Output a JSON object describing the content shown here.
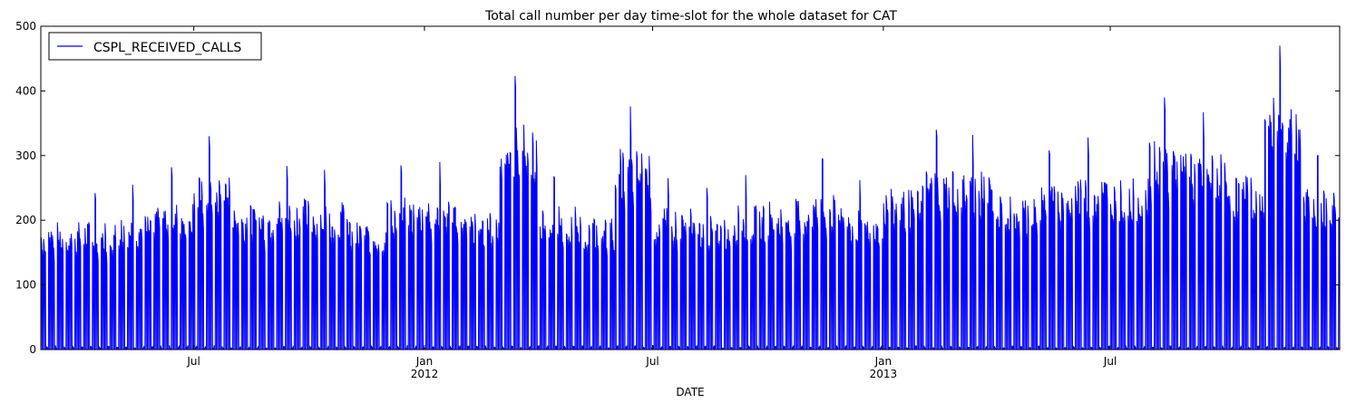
{
  "chart_data": {
    "type": "line",
    "title": "Total call number per day time-slot for the whole dataset for CAT",
    "xlabel": "DATE",
    "ylabel": "",
    "ylim": [
      0,
      500
    ],
    "xlim": [
      "2011-03-01",
      "2013-12-31"
    ],
    "grid": false,
    "legend_position": "top-left",
    "series_color": "#0000ff",
    "y_ticks": [
      "0",
      "100",
      "200",
      "300",
      "400",
      "500"
    ],
    "x_ticks": [
      {
        "date": "2011-07-01",
        "label": "Jul",
        "sublabel": ""
      },
      {
        "date": "2012-01-01",
        "label": "Jan",
        "sublabel": "2012"
      },
      {
        "date": "2012-07-01",
        "label": "Jul",
        "sublabel": ""
      },
      {
        "date": "2013-01-01",
        "label": "Jan",
        "sublabel": "2013"
      },
      {
        "date": "2013-07-01",
        "label": "Jul",
        "sublabel": ""
      }
    ],
    "series": [
      {
        "name": "CSPL_RECEIVED_CALLS",
        "color": "#0000ff",
        "period_peaks": [
          {
            "start": "2011-03-01",
            "end": "2011-03-31",
            "peak": 240
          },
          {
            "start": "2011-04-01",
            "end": "2011-04-30",
            "peak": 242
          },
          {
            "start": "2011-05-01",
            "end": "2011-05-31",
            "peak": 255
          },
          {
            "start": "2011-06-01",
            "end": "2011-06-30",
            "peak": 282
          },
          {
            "start": "2011-07-01",
            "end": "2011-07-31",
            "peak": 330
          },
          {
            "start": "2011-08-01",
            "end": "2011-08-31",
            "peak": 272
          },
          {
            "start": "2011-09-01",
            "end": "2011-09-30",
            "peak": 284
          },
          {
            "start": "2011-10-01",
            "end": "2011-10-31",
            "peak": 278
          },
          {
            "start": "2011-11-01",
            "end": "2011-11-30",
            "peak": 240
          },
          {
            "start": "2011-12-01",
            "end": "2011-12-31",
            "peak": 285
          },
          {
            "start": "2012-01-01",
            "end": "2012-01-31",
            "peak": 290
          },
          {
            "start": "2012-02-01",
            "end": "2012-02-29",
            "peak": 258
          },
          {
            "start": "2012-03-01",
            "end": "2012-03-31",
            "peak": 423
          },
          {
            "start": "2012-04-01",
            "end": "2012-04-30",
            "peak": 268
          },
          {
            "start": "2012-05-01",
            "end": "2012-05-31",
            "peak": 248
          },
          {
            "start": "2012-06-01",
            "end": "2012-06-30",
            "peak": 376
          },
          {
            "start": "2012-07-01",
            "end": "2012-07-31",
            "peak": 265
          },
          {
            "start": "2012-08-01",
            "end": "2012-08-31",
            "peak": 250
          },
          {
            "start": "2012-09-01",
            "end": "2012-09-30",
            "peak": 270
          },
          {
            "start": "2012-10-01",
            "end": "2012-10-31",
            "peak": 282
          },
          {
            "start": "2012-11-01",
            "end": "2012-11-30",
            "peak": 295
          },
          {
            "start": "2012-12-01",
            "end": "2012-12-31",
            "peak": 262
          },
          {
            "start": "2013-01-01",
            "end": "2013-01-31",
            "peak": 300
          },
          {
            "start": "2013-02-01",
            "end": "2013-02-28",
            "peak": 340
          },
          {
            "start": "2013-03-01",
            "end": "2013-03-31",
            "peak": 332
          },
          {
            "start": "2013-04-01",
            "end": "2013-04-30",
            "peak": 290
          },
          {
            "start": "2013-05-01",
            "end": "2013-05-31",
            "peak": 308
          },
          {
            "start": "2013-06-01",
            "end": "2013-06-30",
            "peak": 328
          },
          {
            "start": "2013-07-01",
            "end": "2013-07-31",
            "peak": 320
          },
          {
            "start": "2013-08-01",
            "end": "2013-08-31",
            "peak": 390
          },
          {
            "start": "2013-09-01",
            "end": "2013-09-30",
            "peak": 367
          },
          {
            "start": "2013-10-01",
            "end": "2013-10-31",
            "peak": 327
          },
          {
            "start": "2013-11-01",
            "end": "2013-11-30",
            "peak": 470
          },
          {
            "start": "2013-12-01",
            "end": "2013-12-31",
            "peak": 300
          }
        ]
      }
    ]
  }
}
